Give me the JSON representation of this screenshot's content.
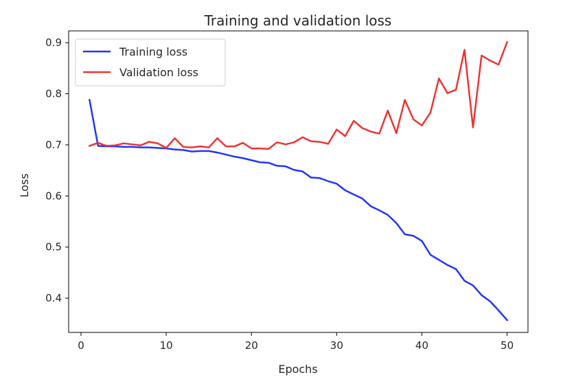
{
  "chart_data": {
    "type": "line",
    "title": "Training and validation loss",
    "xlabel": "Epochs",
    "ylabel": "Loss",
    "xlim": [
      -1.45,
      52.45
    ],
    "ylim": [
      0.333,
      0.923
    ],
    "xticks": [
      0,
      10,
      20,
      30,
      40,
      50
    ],
    "yticks": [
      0.4,
      0.5,
      0.6,
      0.7,
      0.8,
      0.9
    ],
    "ytick_labels": [
      "0.4",
      "0.5",
      "0.6",
      "0.7",
      "0.8",
      "0.9"
    ],
    "grid": false,
    "legend": "top-left",
    "x": [
      1,
      2,
      3,
      4,
      5,
      6,
      7,
      8,
      9,
      10,
      11,
      12,
      13,
      14,
      15,
      16,
      17,
      18,
      19,
      20,
      21,
      22,
      23,
      24,
      25,
      26,
      27,
      28,
      29,
      30,
      31,
      32,
      33,
      34,
      35,
      36,
      37,
      38,
      39,
      40,
      41,
      42,
      43,
      44,
      45,
      46,
      47,
      48,
      49,
      50
    ],
    "series": [
      {
        "name": "Training loss",
        "color": "#2233ff",
        "values": [
          0.788,
          0.698,
          0.697,
          0.697,
          0.696,
          0.696,
          0.695,
          0.695,
          0.694,
          0.693,
          0.691,
          0.69,
          0.687,
          0.688,
          0.688,
          0.685,
          0.681,
          0.677,
          0.674,
          0.67,
          0.666,
          0.665,
          0.659,
          0.658,
          0.651,
          0.648,
          0.636,
          0.635,
          0.629,
          0.624,
          0.611,
          0.603,
          0.595,
          0.58,
          0.572,
          0.563,
          0.547,
          0.525,
          0.522,
          0.512,
          0.485,
          0.475,
          0.465,
          0.457,
          0.434,
          0.425,
          0.406,
          0.394,
          0.376,
          0.357
        ]
      },
      {
        "name": "Validation loss",
        "color": "#ee3333",
        "values": [
          0.698,
          0.704,
          0.698,
          0.699,
          0.703,
          0.701,
          0.699,
          0.706,
          0.703,
          0.694,
          0.713,
          0.696,
          0.695,
          0.697,
          0.695,
          0.713,
          0.697,
          0.697,
          0.704,
          0.693,
          0.693,
          0.692,
          0.705,
          0.701,
          0.705,
          0.715,
          0.707,
          0.706,
          0.702,
          0.73,
          0.717,
          0.747,
          0.733,
          0.726,
          0.722,
          0.767,
          0.723,
          0.788,
          0.75,
          0.738,
          0.763,
          0.83,
          0.801,
          0.808,
          0.886,
          0.734,
          0.875,
          0.865,
          0.857,
          0.901
        ]
      }
    ]
  }
}
